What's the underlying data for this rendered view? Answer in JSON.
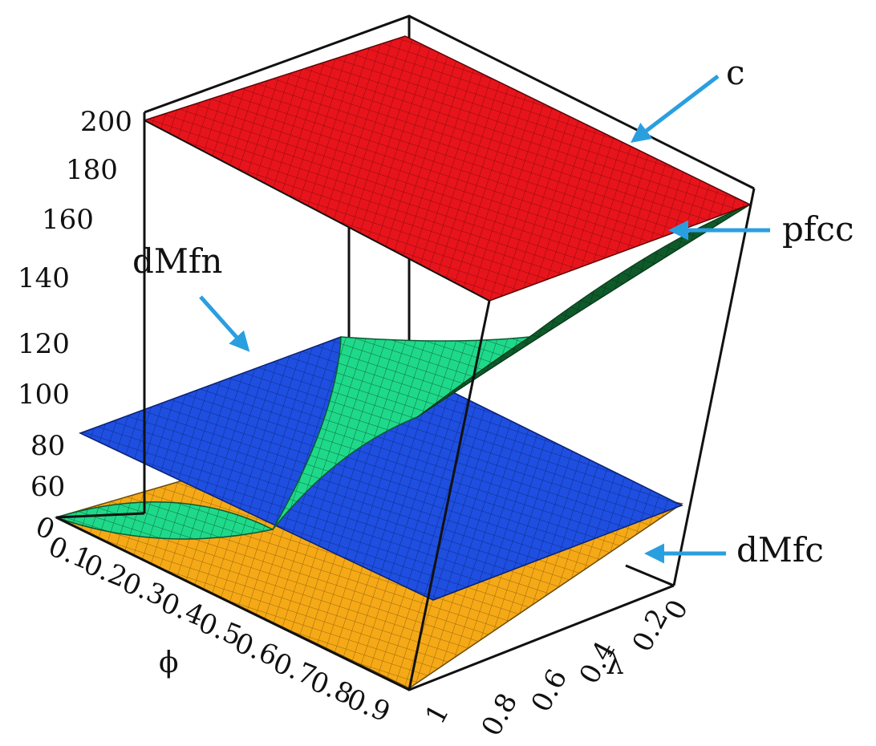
{
  "chart_data": {
    "type": "surface3d",
    "title": "",
    "xlabel": "ϕ",
    "ylabel": "λ",
    "zlabel": "",
    "phi_ticks": [
      "0",
      "0.1",
      "0.2",
      "0.3",
      "0.4",
      "0.5",
      "0.6",
      "0.7",
      "0.8",
      "0.9"
    ],
    "lambda_ticks": [
      "0",
      "0.2",
      "0.4",
      "0.6",
      "0.8",
      "1"
    ],
    "z_ticks": [
      "60",
      "80",
      "100",
      "120",
      "140",
      "160",
      "180",
      "200"
    ],
    "phi_range": [
      0,
      0.9
    ],
    "lambda_range": [
      0,
      1
    ],
    "zlim": [
      50,
      200
    ],
    "surfaces": [
      {
        "name": "c",
        "color": "#e8141b",
        "description_values": {
          "z_at_corners": {
            "phi0_lambda0": 199,
            "phi0_lambda1": 192,
            "phi0.9_lambda0": 160,
            "phi0.9_lambda1": 146
          }
        }
      },
      {
        "name": "pfcc",
        "color": "#1fd98a",
        "description_values": {
          "z_at_corners": {
            "phi0_lambda0": 50,
            "phi0_lambda1": 85,
            "phi0.9_lambda0": 160,
            "phi0.9_lambda1": 110
          }
        }
      },
      {
        "name": "dMfn",
        "color": "#1e4fe0",
        "description_values": {
          "z_at_corners": {
            "phi0_lambda0": 78,
            "phi0_lambda1": 112,
            "phi0.9_lambda0": 40,
            "phi0.9_lambda1": 58
          }
        }
      },
      {
        "name": "dMfc",
        "color": "#f5a917",
        "description_values": {
          "z_at_corners": {
            "phi0_lambda0": 50,
            "phi0_lambda1": 50,
            "phi0.9_lambda0": 50,
            "phi0.9_lambda1": 50
          }
        }
      }
    ],
    "callouts": [
      {
        "label": "c",
        "target": "c"
      },
      {
        "label": "pfcc",
        "target": "pfcc"
      },
      {
        "label": "dMfn",
        "target": "dMfn"
      },
      {
        "label": "dMfc",
        "target": "dMfc"
      }
    ]
  }
}
